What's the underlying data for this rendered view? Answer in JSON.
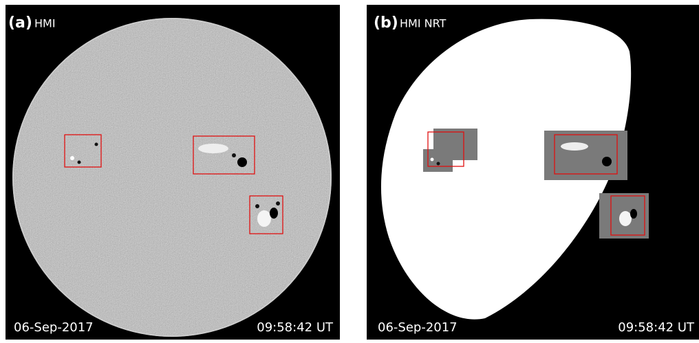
{
  "panels": [
    {
      "label": "(a)",
      "title": "HMI",
      "date": "06-Sep-2017",
      "time": "09:58:42 UT"
    },
    {
      "label": "(b)",
      "title": "HMI NRT",
      "date": "06-Sep-2017",
      "time": "09:58:42 UT"
    }
  ]
}
